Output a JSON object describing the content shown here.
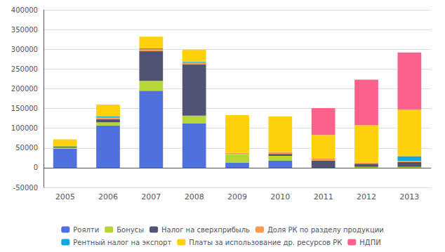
{
  "chart_data": {
    "type": "bar",
    "stacked": true,
    "categories": [
      "2005",
      "2006",
      "2007",
      "2008",
      "2009",
      "2010",
      "2011",
      "2012",
      "2013"
    ],
    "series": [
      {
        "name": "Роялти",
        "values": [
          48000,
          107000,
          195000,
          112000,
          13000,
          18000,
          0,
          0,
          0
        ]
      },
      {
        "name": "Бонусы",
        "values": [
          3000,
          8000,
          25000,
          20000,
          22000,
          12000,
          0,
          2000,
          2000
        ]
      },
      {
        "name": "Налог на сверхприбыль",
        "values": [
          2000,
          8000,
          75000,
          130000,
          0,
          5000,
          18000,
          8000,
          12000
        ]
      },
      {
        "name": "Доля РК по разделу продукции",
        "values": [
          0,
          5000,
          5000,
          5000,
          3000,
          5000,
          5000,
          3000,
          3000
        ]
      },
      {
        "name": "Рентный налог на экспорт",
        "values": [
          1000,
          2000,
          2000,
          2000,
          0,
          0,
          0,
          0,
          12000
        ]
      },
      {
        "name": "Платы за использование др. ресурсов РК",
        "values": [
          18000,
          30000,
          30000,
          30000,
          95000,
          90000,
          60000,
          95000,
          118000
        ]
      },
      {
        "name": "НДПИ",
        "values": [
          0,
          0,
          0,
          0,
          0,
          0,
          68000,
          115000,
          145000
        ]
      }
    ],
    "ylim": [
      -50000,
      400000
    ],
    "yticks": [
      -50000,
      0,
      50000,
      100000,
      150000,
      200000,
      250000,
      300000,
      350000,
      400000
    ],
    "grid": true,
    "legend": "bottom"
  }
}
